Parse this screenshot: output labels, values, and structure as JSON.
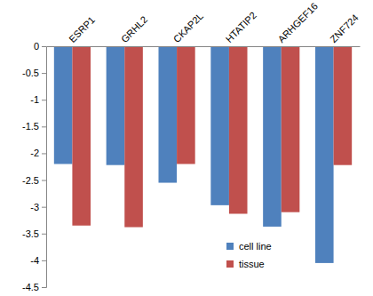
{
  "chart_data": {
    "type": "bar",
    "categories": [
      "ESRP1",
      "GRHL2",
      "CKAP2L",
      "HTATIP2",
      "ARHGEF16",
      "ZNF724"
    ],
    "series": [
      {
        "name": "cell line",
        "color": "#4f81bd",
        "values": [
          -2.2,
          -2.22,
          -2.55,
          -2.97,
          -3.37,
          -4.05
        ]
      },
      {
        "name": "tissue",
        "color": "#c0504d",
        "values": [
          -3.35,
          -3.38,
          -2.2,
          -3.13,
          -3.1,
          -2.22
        ]
      }
    ],
    "ylim": [
      -4.5,
      0
    ],
    "yticks": [
      0,
      -0.5,
      -1,
      -1.5,
      -2,
      -2.5,
      -3,
      -3.5,
      -4,
      -4.5
    ],
    "grid": false,
    "legend": "lower right"
  }
}
